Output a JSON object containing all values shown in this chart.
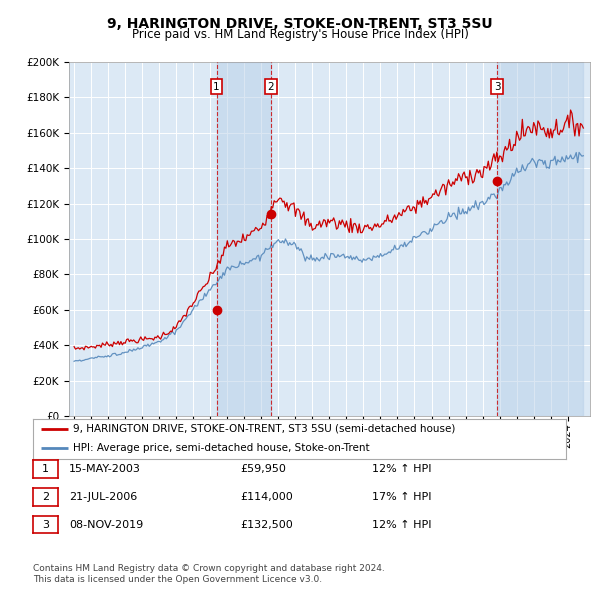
{
  "title": "9, HARINGTON DRIVE, STOKE-ON-TRENT, ST3 5SU",
  "subtitle": "Price paid vs. HM Land Registry's House Price Index (HPI)",
  "background_color": "#ffffff",
  "plot_bg_color": "#dce9f5",
  "grid_color": "#ffffff",
  "red_line_color": "#cc0000",
  "blue_line_color": "#5588bb",
  "sale_marker_color": "#cc0000",
  "vline_color": "#cc0000",
  "shade_color": "#b8d0e8",
  "ylim": [
    0,
    200000
  ],
  "yticks": [
    0,
    20000,
    40000,
    60000,
    80000,
    100000,
    120000,
    140000,
    160000,
    180000,
    200000
  ],
  "ytick_labels": [
    "£0",
    "£20K",
    "£40K",
    "£60K",
    "£80K",
    "£100K",
    "£120K",
    "£140K",
    "£160K",
    "£180K",
    "£200K"
  ],
  "x_start_year": 1995,
  "x_end_year": 2025,
  "sales": [
    {
      "date_num": 2003.37,
      "price": 59950,
      "label": "1"
    },
    {
      "date_num": 2006.55,
      "price": 114000,
      "label": "2"
    },
    {
      "date_num": 2019.85,
      "price": 132500,
      "label": "3"
    }
  ],
  "legend_entries": [
    {
      "label": "9, HARINGTON DRIVE, STOKE-ON-TRENT, ST3 5SU (semi-detached house)",
      "color": "#cc0000"
    },
    {
      "label": "HPI: Average price, semi-detached house, Stoke-on-Trent",
      "color": "#5588bb"
    }
  ],
  "table_rows": [
    {
      "num": "1",
      "date": "15-MAY-2003",
      "price": "£59,950",
      "change": "12% ↑ HPI"
    },
    {
      "num": "2",
      "date": "21-JUL-2006",
      "price": "£114,000",
      "change": "17% ↑ HPI"
    },
    {
      "num": "3",
      "date": "08-NOV-2019",
      "price": "£132,500",
      "change": "12% ↑ HPI"
    }
  ],
  "footnote1": "Contains HM Land Registry data © Crown copyright and database right 2024.",
  "footnote2": "This data is licensed under the Open Government Licence v3.0.",
  "hpi_anchors": {
    "1995": 31000,
    "1996": 32500,
    "1997": 34000,
    "1998": 36000,
    "1999": 38500,
    "2000": 42000,
    "2001": 48000,
    "2002": 60000,
    "2003": 72000,
    "2004": 82000,
    "2005": 86000,
    "2006": 91000,
    "2007": 100000,
    "2008": 96000,
    "2009": 88000,
    "2010": 91000,
    "2011": 90000,
    "2012": 88000,
    "2013": 90000,
    "2014": 95000,
    "2015": 100000,
    "2016": 106000,
    "2017": 112000,
    "2018": 116000,
    "2019": 120000,
    "2020": 127000,
    "2021": 138000,
    "2022": 144000,
    "2023": 143000,
    "2024": 146000
  },
  "red_anchors": {
    "1995": 38000,
    "1996": 39000,
    "1997": 40500,
    "1998": 42000,
    "1999": 43000,
    "2000": 44500,
    "2001": 50000,
    "2002": 64000,
    "2003": 78000,
    "2004": 96000,
    "2005": 100000,
    "2006": 107000,
    "2007": 125000,
    "2008": 116000,
    "2009": 107000,
    "2010": 110000,
    "2011": 108000,
    "2012": 106000,
    "2013": 108000,
    "2014": 113000,
    "2015": 118000,
    "2016": 124000,
    "2017": 130000,
    "2018": 136000,
    "2019": 138000,
    "2020": 146000,
    "2021": 157000,
    "2022": 164000,
    "2023": 161000,
    "2024": 165000
  }
}
